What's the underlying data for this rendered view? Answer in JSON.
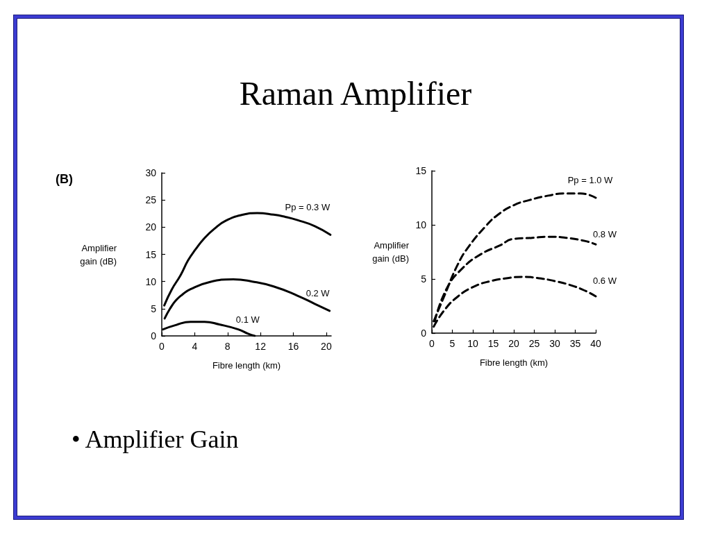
{
  "chart_data": [
    {
      "type": "other",
      "title": "Raman Amplifier"
    },
    {
      "type": "line",
      "annotations": [
        "(B)"
      ],
      "xlabel": "Fibre length (km)",
      "ylabel": "Amplifier gain (dB)",
      "xlim": [
        0,
        20.6
      ],
      "xticks": [
        0,
        4,
        8,
        12,
        16,
        20
      ],
      "ylim": [
        0,
        30
      ],
      "yticks": [
        0,
        5,
        10,
        15,
        20,
        25,
        30
      ],
      "line_style": "solid",
      "series": [
        {
          "name": "Pp = 0.3 W",
          "color": "#000000",
          "x": [
            0.3,
            1.2,
            2.3,
            3.2,
            4.1,
            5.2,
            6.4,
            7.8,
            9.9,
            11.6,
            13.6,
            15.0,
            16.5,
            18.6,
            20.5
          ],
          "values": [
            5.6,
            8.5,
            11.2,
            13.9,
            15.9,
            18.0,
            19.7,
            21.2,
            22.3,
            22.6,
            22.3,
            21.9,
            21.3,
            20.2,
            18.6
          ]
        },
        {
          "name": "0.2 W",
          "color": "#000000",
          "x": [
            0.35,
            1.0,
            1.7,
            2.5,
            3.5,
            5.8,
            8.7,
            11.0,
            13.6,
            16.5,
            18.6,
            20.4
          ],
          "values": [
            3.2,
            5.0,
            6.5,
            7.6,
            8.6,
            9.9,
            10.4,
            10.0,
            9.1,
            7.4,
            5.9,
            4.6
          ]
        },
        {
          "name": "0.1 W",
          "color": "#000000",
          "x": [
            0.15,
            1.7,
            3.5,
            5.2,
            7.0,
            9.3,
            10.5,
            11.3
          ],
          "values": [
            1.2,
            2.0,
            2.6,
            2.6,
            2.1,
            1.2,
            0.4,
            0
          ]
        }
      ]
    },
    {
      "type": "line",
      "xlabel": "Fibre length (km)",
      "ylabel": "Amplifier gain (dB)",
      "xlim": [
        0,
        40
      ],
      "xticks": [
        0,
        5,
        10,
        15,
        20,
        25,
        30,
        35,
        40
      ],
      "ylim": [
        0,
        15
      ],
      "yticks": [
        0,
        5,
        10,
        15
      ],
      "line_style": "dashed",
      "series": [
        {
          "name": "Pp = 1.0 W",
          "color": "#000000",
          "x": [
            0.45,
            3.0,
            6.4,
            9.2,
            13.2,
            16.0,
            19.9,
            23.9,
            28.4,
            32.4,
            36.3,
            40.0
          ],
          "values": [
            1.1,
            3.4,
            6.4,
            8.1,
            9.9,
            10.9,
            11.8,
            12.3,
            12.7,
            12.9,
            12.9,
            12.5
          ]
        },
        {
          "name": "0.8 W",
          "color": "#000000",
          "x": [
            0.7,
            3.6,
            7.5,
            12.0,
            16.6,
            19.9,
            24.5,
            28.4,
            32.9,
            37.5,
            40.0
          ],
          "values": [
            1.1,
            4.1,
            6.0,
            7.3,
            8.1,
            8.7,
            8.8,
            8.9,
            8.8,
            8.5,
            8.2
          ]
        },
        {
          "name": "0.6 W",
          "color": "#000000",
          "x": [
            0.45,
            3.0,
            6.4,
            10.3,
            14.3,
            18.8,
            22.2,
            25.6,
            30.1,
            34.1,
            37.5,
            40.0
          ],
          "values": [
            0.6,
            2.1,
            3.4,
            4.3,
            4.8,
            5.1,
            5.2,
            5.1,
            4.8,
            4.4,
            3.9,
            3.4
          ]
        }
      ]
    },
    {
      "type": "other",
      "annotations": [
        "• Amplifier Gain"
      ]
    }
  ]
}
